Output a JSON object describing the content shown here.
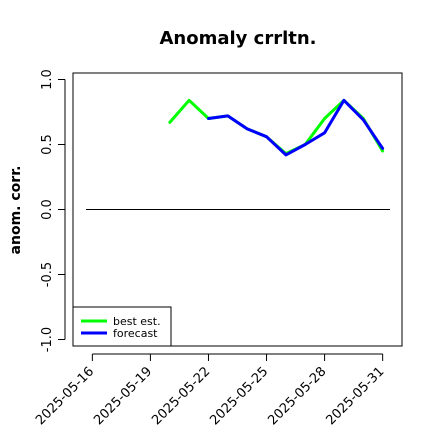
{
  "chart_data": {
    "type": "line",
    "title": "Anomaly crrltn.",
    "xlabel": "",
    "ylabel": "anom. corr.",
    "x_ticks": [
      "2025-05-16",
      "2025-05-19",
      "2025-05-22",
      "2025-05-25",
      "2025-05-28",
      "2025-05-31"
    ],
    "x_tick_colors": [
      "#000000",
      "#000000",
      "#228B22",
      "#000000",
      "#000000",
      "#000000"
    ],
    "xlim": [
      "2025-05-15",
      "2025-06-01"
    ],
    "y_ticks": [
      "-1.0",
      "-0.5",
      "0.0",
      "0.5",
      "1.0"
    ],
    "ylim": [
      -1.05,
      1.05
    ],
    "reference_line": 0.0,
    "grid": false,
    "legend_position": "bottom-left",
    "series": [
      {
        "name": "best est.",
        "color": "#00ff00",
        "x": [
          "2025-05-20",
          "2025-05-21",
          "2025-05-22",
          "2025-05-23",
          "2025-05-24",
          "2025-05-25",
          "2025-05-26",
          "2025-05-27",
          "2025-05-28",
          "2025-05-29",
          "2025-05-30",
          "2025-05-31"
        ],
        "values": [
          0.67,
          0.84,
          0.7,
          0.72,
          0.62,
          0.56,
          0.43,
          0.5,
          0.7,
          0.84,
          0.7,
          0.45
        ]
      },
      {
        "name": "forecast",
        "color": "#0000ff",
        "x": [
          "2025-05-22",
          "2025-05-23",
          "2025-05-24",
          "2025-05-25",
          "2025-05-26",
          "2025-05-27",
          "2025-05-28",
          "2025-05-29",
          "2025-05-30",
          "2025-05-31"
        ],
        "values": [
          0.7,
          0.72,
          0.62,
          0.56,
          0.42,
          0.5,
          0.59,
          0.84,
          0.69,
          0.47
        ]
      }
    ]
  }
}
